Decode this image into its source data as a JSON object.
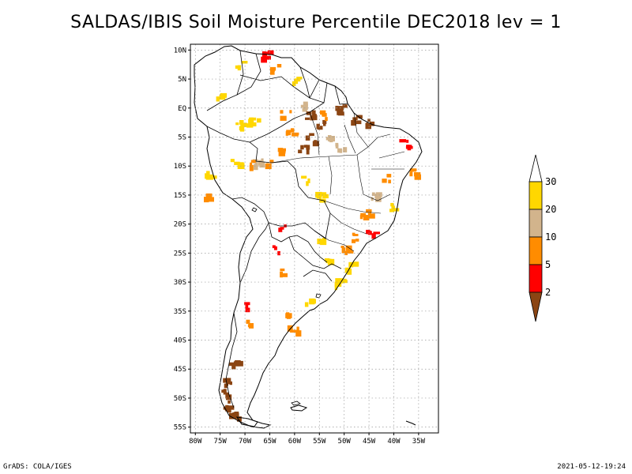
{
  "title": "SALDAS/IBIS Soil Moisture Percentile DEC2018 lev = 1",
  "footer": {
    "left": "GrADS: COLA/IGES",
    "right": "2021-05-12-19:24"
  },
  "map": {
    "lat_labels": [
      "10N",
      "5N",
      "EQ",
      "5S",
      "10S",
      "15S",
      "20S",
      "25S",
      "30S",
      "35S",
      "40S",
      "45S",
      "50S",
      "55S"
    ],
    "lon_labels": [
      "80W",
      "75W",
      "70W",
      "65W",
      "60W",
      "55W",
      "50W",
      "45W",
      "40W",
      "35W"
    ],
    "extent": {
      "lon": [
        -81,
        -31
      ],
      "lat": [
        -56,
        11
      ]
    },
    "grid": "dotted",
    "land_color": "#ffffff",
    "coast_color": "#000000"
  },
  "colorbar": {
    "placement": "right",
    "boundaries": [
      "30",
      "20",
      "10",
      "5",
      "2"
    ],
    "colors": [
      {
        "range": "above 30",
        "hex": "#ffffff"
      },
      {
        "range": "20-30",
        "hex": "#ffd700"
      },
      {
        "range": "10-20",
        "hex": "#d2b48c"
      },
      {
        "range": "5-10",
        "hex": "#ff8c00"
      },
      {
        "range": "2-5",
        "hex": "#ff0000"
      },
      {
        "range": "below 2",
        "hex": "#8b4513"
      }
    ]
  },
  "anomaly_patches": [
    {
      "lon": -75,
      "lat": 2,
      "cls": 1
    },
    {
      "lon": -72,
      "lat": -2.5,
      "cls": 1
    },
    {
      "lon": -70.5,
      "lat": -3,
      "cls": 1
    },
    {
      "lon": -68.5,
      "lat": -2,
      "cls": 1
    },
    {
      "lon": -72,
      "lat": -9,
      "cls": 1
    },
    {
      "lon": -67.5,
      "lat": -9,
      "cls": 2
    },
    {
      "lon": -65,
      "lat": -9.5,
      "cls": 3
    },
    {
      "lon": -69,
      "lat": -9.5,
      "cls": 3
    },
    {
      "lon": -63,
      "lat": -7.5,
      "cls": 3
    },
    {
      "lon": -59,
      "lat": 1,
      "cls": 2
    },
    {
      "lon": -57,
      "lat": -1,
      "cls": 5
    },
    {
      "lon": -55,
      "lat": -2.5,
      "cls": 5
    },
    {
      "lon": -54,
      "lat": -1,
      "cls": 3
    },
    {
      "lon": -51,
      "lat": 0,
      "cls": 5
    },
    {
      "lon": -48,
      "lat": -1.5,
      "cls": 5
    },
    {
      "lon": -45.5,
      "lat": -2,
      "cls": 5
    },
    {
      "lon": -53,
      "lat": -5,
      "cls": 2
    },
    {
      "lon": -57,
      "lat": -5,
      "cls": 5
    },
    {
      "lon": -58.5,
      "lat": -7,
      "cls": 5
    },
    {
      "lon": -51,
      "lat": -6.5,
      "cls": 2
    },
    {
      "lon": -60,
      "lat": 5,
      "cls": 1
    },
    {
      "lon": -64,
      "lat": 7,
      "cls": 3
    },
    {
      "lon": -66,
      "lat": 9.5,
      "cls": 4
    },
    {
      "lon": -71,
      "lat": 8,
      "cls": 1
    },
    {
      "lon": -62,
      "lat": -1,
      "cls": 3
    },
    {
      "lon": -61,
      "lat": -4,
      "cls": 3
    },
    {
      "lon": -77.5,
      "lat": -11,
      "cls": 1
    },
    {
      "lon": -78,
      "lat": -15,
      "cls": 3
    },
    {
      "lon": -64,
      "lat": -24,
      "cls": 4
    },
    {
      "lon": -62.5,
      "lat": -20.5,
      "cls": 4
    },
    {
      "lon": -63,
      "lat": -28,
      "cls": 3
    },
    {
      "lon": -62,
      "lat": -35,
      "cls": 3
    },
    {
      "lon": -60.5,
      "lat": -38,
      "cls": 3
    },
    {
      "lon": -70.5,
      "lat": -34,
      "cls": 4
    },
    {
      "lon": -70,
      "lat": -37,
      "cls": 3
    },
    {
      "lon": -48,
      "lat": -22,
      "cls": 3
    },
    {
      "lon": -46,
      "lat": -18,
      "cls": 3
    },
    {
      "lon": -44,
      "lat": -15,
      "cls": 2
    },
    {
      "lon": -45,
      "lat": -21,
      "cls": 4
    },
    {
      "lon": -42,
      "lat": -12,
      "cls": 3
    },
    {
      "lon": -40,
      "lat": -17,
      "cls": 1
    },
    {
      "lon": -49,
      "lat": -27,
      "cls": 1
    },
    {
      "lon": -53,
      "lat": -26,
      "cls": 1
    },
    {
      "lon": -58,
      "lat": -12,
      "cls": 1
    },
    {
      "lon": -55,
      "lat": -15,
      "cls": 1
    },
    {
      "lon": -55,
      "lat": -22,
      "cls": 1
    },
    {
      "lon": -51,
      "lat": -30,
      "cls": 1
    },
    {
      "lon": -58,
      "lat": -33,
      "cls": 1
    },
    {
      "lon": -38,
      "lat": -6,
      "cls": 4
    },
    {
      "lon": -36,
      "lat": -11,
      "cls": 3
    },
    {
      "lon": -50,
      "lat": -24,
      "cls": 3
    },
    {
      "lon": -72.5,
      "lat": -44,
      "cls": 5
    },
    {
      "lon": -73.5,
      "lat": -47,
      "cls": 5
    },
    {
      "lon": -74,
      "lat": -49,
      "cls": 5
    },
    {
      "lon": -73.5,
      "lat": -51,
      "cls": 5
    },
    {
      "lon": -72.5,
      "lat": -53,
      "cls": 5
    }
  ]
}
